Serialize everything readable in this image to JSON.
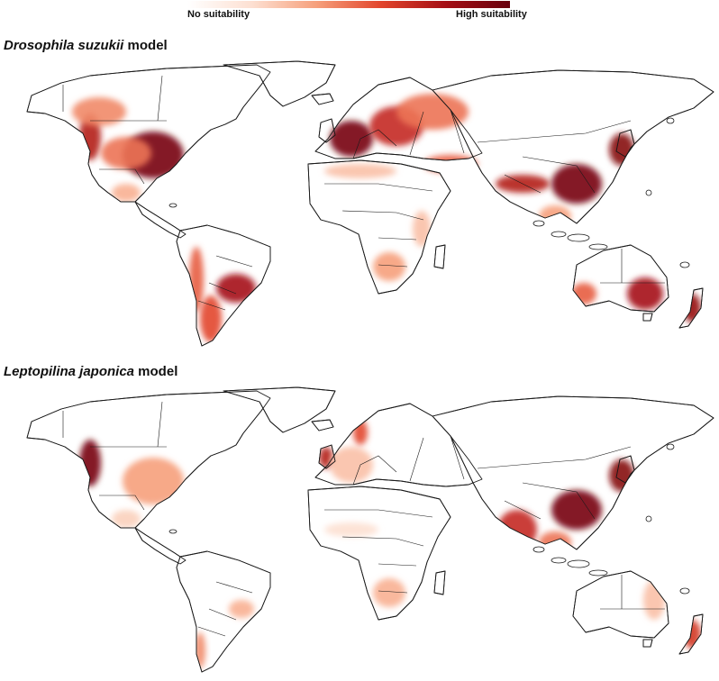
{
  "legend": {
    "low_label": "No suitability",
    "high_label": "High suitability",
    "colors": [
      "#ffffff",
      "#fde0d2",
      "#f6a07c",
      "#e2452c",
      "#a50f15",
      "#67000d"
    ]
  },
  "panels": [
    {
      "title_species": "Drosophila suzukii",
      "title_suffix": " model",
      "hotspots": [
        {
          "region": "eastern-usa",
          "suitability": 0.95
        },
        {
          "region": "pacific-northwest-usa",
          "suitability": 0.75
        },
        {
          "region": "western-canada",
          "suitability": 0.45
        },
        {
          "region": "central-usa",
          "suitability": 0.5
        },
        {
          "region": "mexico",
          "suitability": 0.35
        },
        {
          "region": "andes",
          "suitability": 0.55
        },
        {
          "region": "southeast-brazil-uruguay",
          "suitability": 0.8
        },
        {
          "region": "argentina-chile",
          "suitability": 0.6
        },
        {
          "region": "western-europe",
          "suitability": 0.95
        },
        {
          "region": "eastern-europe",
          "suitability": 0.7
        },
        {
          "region": "west-russia",
          "suitability": 0.5
        },
        {
          "region": "middle-east-caucasus",
          "suitability": 0.55
        },
        {
          "region": "north-africa",
          "suitability": 0.3
        },
        {
          "region": "east-africa",
          "suitability": 0.3
        },
        {
          "region": "southern-africa",
          "suitability": 0.4
        },
        {
          "region": "himalaya",
          "suitability": 0.75
        },
        {
          "region": "east-china",
          "suitability": 0.95
        },
        {
          "region": "japan-korea",
          "suitability": 0.9
        },
        {
          "region": "southeast-asia",
          "suitability": 0.4
        },
        {
          "region": "southeast-australia",
          "suitability": 0.8
        },
        {
          "region": "southwest-australia",
          "suitability": 0.55
        },
        {
          "region": "new-zealand",
          "suitability": 0.85
        }
      ]
    },
    {
      "title_species": "Leptopilina japonica",
      "title_suffix": " model",
      "hotspots": [
        {
          "region": "pacific-northwest-usa",
          "suitability": 0.95
        },
        {
          "region": "eastern-usa",
          "suitability": 0.4
        },
        {
          "region": "mexico",
          "suitability": 0.25
        },
        {
          "region": "southeast-brazil",
          "suitability": 0.35
        },
        {
          "region": "chile",
          "suitability": 0.45
        },
        {
          "region": "british-isles",
          "suitability": 0.75
        },
        {
          "region": "western-europe",
          "suitability": 0.3
        },
        {
          "region": "norway-coast",
          "suitability": 0.6
        },
        {
          "region": "india",
          "suitability": 0.7
        },
        {
          "region": "east-china",
          "suitability": 0.95
        },
        {
          "region": "japan-korea",
          "suitability": 0.9
        },
        {
          "region": "southeast-asia",
          "suitability": 0.5
        },
        {
          "region": "southern-africa",
          "suitability": 0.35
        },
        {
          "region": "west-africa",
          "suitability": 0.2
        },
        {
          "region": "eastern-australia",
          "suitability": 0.3
        },
        {
          "region": "new-zealand",
          "suitability": 0.65
        }
      ]
    }
  ]
}
